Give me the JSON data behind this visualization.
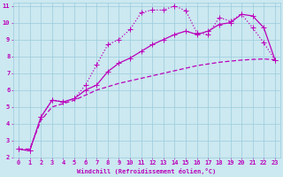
{
  "xlabel": "Windchill (Refroidissement éolien,°C)",
  "background_color": "#cce8f0",
  "grid_color": "#99ccdd",
  "line_color": "#bb00bb",
  "xlim": [
    -0.5,
    23.5
  ],
  "ylim": [
    2,
    11.2
  ],
  "yticks": [
    2,
    3,
    4,
    5,
    6,
    7,
    8,
    9,
    10,
    11
  ],
  "xticks": [
    0,
    1,
    2,
    3,
    4,
    5,
    6,
    7,
    8,
    9,
    10,
    11,
    12,
    13,
    14,
    15,
    16,
    17,
    18,
    19,
    20,
    21,
    22,
    23
  ],
  "curve1_x": [
    0,
    1,
    2,
    3,
    4,
    5,
    6,
    7,
    8,
    9,
    10,
    11,
    12,
    13,
    14,
    15,
    16,
    17,
    18,
    19,
    20,
    21,
    22,
    23
  ],
  "curve1_y": [
    2.5,
    2.4,
    4.4,
    5.4,
    5.3,
    5.5,
    6.3,
    7.5,
    8.7,
    9.0,
    9.6,
    10.6,
    10.75,
    10.75,
    11.0,
    10.7,
    9.4,
    9.3,
    10.3,
    10.1,
    10.5,
    9.7,
    8.8,
    7.8
  ],
  "curve2_x": [
    0,
    1,
    2,
    3,
    4,
    5,
    6,
    7,
    8,
    9,
    10,
    11,
    12,
    13,
    14,
    15,
    16,
    17,
    18,
    19,
    20,
    21,
    22,
    23
  ],
  "curve2_y": [
    2.5,
    2.4,
    4.4,
    5.4,
    5.3,
    5.5,
    6.0,
    6.3,
    7.1,
    7.6,
    7.9,
    8.3,
    8.7,
    9.0,
    9.3,
    9.5,
    9.3,
    9.5,
    9.9,
    10.0,
    10.5,
    10.4,
    9.7,
    7.8
  ],
  "curve3_x": [
    0,
    1,
    2,
    3,
    4,
    5,
    6,
    7,
    8,
    9,
    10,
    11,
    12,
    13,
    14,
    15,
    16,
    17,
    18,
    19,
    20,
    21,
    22,
    23
  ],
  "curve3_y": [
    2.5,
    2.5,
    4.2,
    5.0,
    5.2,
    5.4,
    5.7,
    6.0,
    6.2,
    6.4,
    6.55,
    6.7,
    6.85,
    7.0,
    7.15,
    7.3,
    7.45,
    7.55,
    7.65,
    7.72,
    7.78,
    7.82,
    7.85,
    7.8
  ]
}
